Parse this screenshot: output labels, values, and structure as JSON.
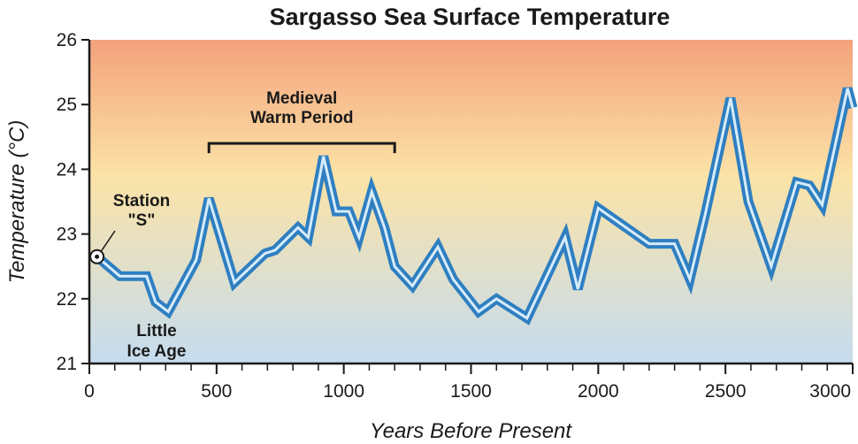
{
  "chart_data": {
    "type": "line",
    "title": "Sargasso Sea Surface Temperature",
    "xlabel": "Years Before Present",
    "ylabel": "Temperature (°C)",
    "xlim": [
      0,
      3000
    ],
    "ylim": [
      21,
      26
    ],
    "x_ticks": [
      0,
      500,
      1000,
      1500,
      2000,
      2500,
      3000
    ],
    "y_ticks": [
      21,
      22,
      23,
      24,
      25,
      26
    ],
    "x_minor_step": 100,
    "grid": false,
    "background": "vertical gradient: orange (top) to light yellow to light blue (bottom)",
    "colors": {
      "line": "#2f7fc1",
      "line_highlight": "#d6ecfa",
      "gradient_top": "#f4a27c",
      "gradient_mid": "#fbe3a7",
      "gradient_bottom": "#c5dcef",
      "axis": "#1a1a1a"
    },
    "series": [
      {
        "x": [
          30,
          120,
          225,
          260,
          310,
          420,
          470,
          570,
          690,
          730,
          820,
          860,
          920,
          970,
          1020,
          1060,
          1110,
          1160,
          1200,
          1270,
          1370,
          1430,
          1530,
          1600,
          1720,
          1870,
          1920,
          2000,
          2200,
          2300,
          2360,
          2420,
          2520,
          2590,
          2680,
          2780,
          2830,
          2880,
          2980,
          3000
        ],
        "y": [
          22.65,
          22.35,
          22.35,
          21.95,
          21.8,
          22.6,
          23.55,
          22.25,
          22.7,
          22.75,
          23.1,
          22.95,
          24.2,
          23.35,
          23.35,
          22.95,
          23.65,
          23.1,
          22.5,
          22.2,
          22.8,
          22.3,
          21.8,
          22.0,
          21.7,
          22.95,
          22.15,
          23.4,
          22.85,
          22.85,
          22.3,
          23.3,
          25.1,
          23.5,
          22.5,
          23.8,
          23.75,
          23.45,
          25.25,
          24.95
        ]
      }
    ],
    "annotations": [
      {
        "lines": [
          "Medieval",
          "Warm Period"
        ],
        "span_x": [
          470,
          1200
        ],
        "bracket_y": 24.4,
        "label_y": [
          25.1,
          24.8
        ]
      },
      {
        "lines": [
          "Station",
          "\"S\""
        ],
        "marker": {
          "x": 30,
          "y": 22.65
        }
      },
      {
        "lines": [
          "Little",
          "Ice Age"
        ],
        "near": "low point around 250-350 years before present"
      }
    ]
  }
}
